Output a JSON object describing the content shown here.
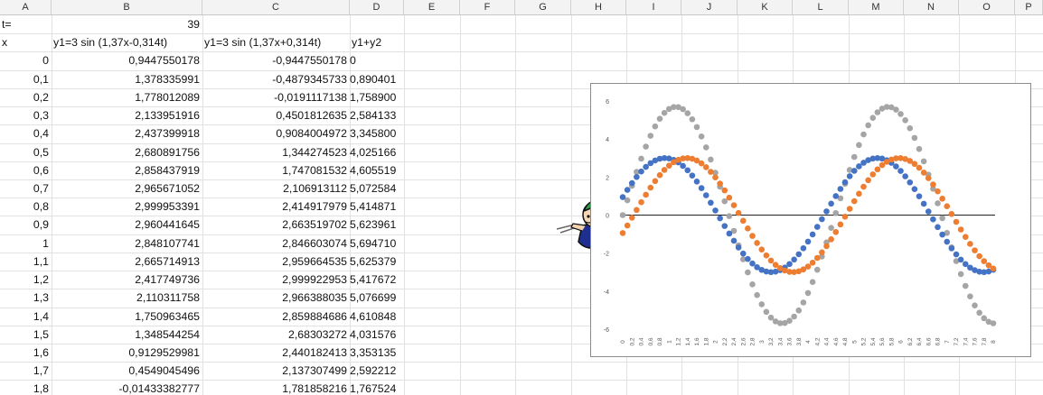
{
  "sheet": {
    "columns": [
      "A",
      "B",
      "C",
      "D",
      "E",
      "F",
      "G",
      "H",
      "I",
      "J",
      "K",
      "L",
      "M",
      "N",
      "O",
      "P"
    ],
    "rows": [
      {
        "a": "t=",
        "b": "39",
        "c": "",
        "d": ""
      },
      {
        "a": "x",
        "b": "y1=3 sin (1,37x-0,314t)",
        "c": "y1=3 sin (1,37x+0,314t)",
        "d": "y1+y2"
      },
      {
        "a": "0",
        "b": "0,9447550178",
        "c": "-0,9447550178",
        "d": "0"
      },
      {
        "a": "0,1",
        "b": "1,378335991",
        "c": "-0,4879345733",
        "d": "0,890401"
      },
      {
        "a": "0,2",
        "b": "1,778012089",
        "c": "-0,0191117138",
        "d": "1,758900"
      },
      {
        "a": "0,3",
        "b": "2,133951916",
        "c": "0,4501812635",
        "d": "2,584133"
      },
      {
        "a": "0,4",
        "b": "2,437399918",
        "c": "0,9084004972",
        "d": "3,345800"
      },
      {
        "a": "0,5",
        "b": "2,680891756",
        "c": "1,344274523",
        "d": "4,025166"
      },
      {
        "a": "0,6",
        "b": "2,858437919",
        "c": "1,747081532",
        "d": "4,605519"
      },
      {
        "a": "0,7",
        "b": "2,965671052",
        "c": "2,106913112",
        "d": "5,072584"
      },
      {
        "a": "0,8",
        "b": "2,999953391",
        "c": "2,414917979",
        "d": "5,414871"
      },
      {
        "a": "0,9",
        "b": "2,960441645",
        "c": "2,663519702",
        "d": "5,623961"
      },
      {
        "a": "1",
        "b": "2,848107741",
        "c": "2,846603074",
        "d": "5,694710"
      },
      {
        "a": "1,1",
        "b": "2,665714913",
        "c": "2,959664535",
        "d": "5,625379"
      },
      {
        "a": "1,2",
        "b": "2,417749736",
        "c": "2,999922953",
        "d": "5,417672"
      },
      {
        "a": "1,3",
        "b": "2,110311758",
        "c": "2,966388035",
        "d": "5,076699"
      },
      {
        "a": "1,4",
        "b": "1,750963465",
        "c": "2,859884686",
        "d": "4,610848"
      },
      {
        "a": "1,5",
        "b": "1,348544254",
        "c": "2,68303272",
        "d": "4,031576"
      },
      {
        "a": "1,6",
        "b": "0,9129529981",
        "c": "2,440182413",
        "d": "3,353135"
      },
      {
        "a": "1,7",
        "b": "0,4549045496",
        "c": "2,137307499",
        "d": "2,592212"
      },
      {
        "a": "1,8",
        "b": "-0,01433382777",
        "c": "1,781858216",
        "d": "1,767524"
      }
    ]
  },
  "chart_data": {
    "type": "scatter",
    "x_range": [
      0,
      8
    ],
    "x_step": 0.1,
    "ylim": [
      -6,
      6
    ],
    "grid": false,
    "legend": "none",
    "params": {
      "t": 39,
      "amplitude": 3,
      "k": 1.37,
      "omega": 0.314
    },
    "y_ticks": [
      "6",
      "4",
      "2",
      "0",
      "-2",
      "-4",
      "-6"
    ],
    "x_ticks": [
      "0",
      "0,2",
      "0,4",
      "0,6",
      "0,8",
      "1",
      "1,2",
      "1,4",
      "1,6",
      "1,8",
      "2",
      "2,2",
      "2,4",
      "2,6",
      "2,8",
      "3",
      "3,2",
      "3,4",
      "3,6",
      "3,8",
      "4",
      "4,2",
      "4,4",
      "4,6",
      "4,8",
      "5",
      "5,2",
      "5,4",
      "5,6",
      "5,8",
      "6",
      "6,2",
      "6,4",
      "6,6",
      "6,8",
      "7",
      "7,2",
      "7,4",
      "7,6",
      "7,8",
      "8"
    ],
    "series": [
      {
        "column": "B",
        "formula": "3*sin(1.37x-0.314t)",
        "color": "#4472c4"
      },
      {
        "column": "C",
        "formula": "3*sin(1.37x+0.314t)",
        "color": "#ed7d31"
      },
      {
        "column": "D",
        "formula": "y1+y2",
        "color": "#a5a5a5"
      }
    ]
  }
}
